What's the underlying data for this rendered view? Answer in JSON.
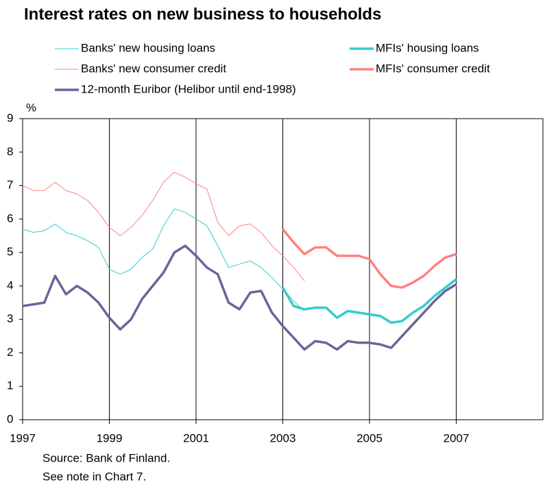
{
  "chart_data": {
    "type": "line",
    "title": "Interest rates on new business to households",
    "y_label": "%",
    "notes": [
      "Source: Bank of Finland.",
      "See note in Chart 7."
    ],
    "x": [
      1997,
      1997.25,
      1997.5,
      1997.75,
      1998,
      1998.25,
      1998.5,
      1998.75,
      1999,
      1999.25,
      1999.5,
      1999.75,
      2000,
      2000.25,
      2000.5,
      2000.75,
      2001,
      2001.25,
      2001.5,
      2001.75,
      2002,
      2002.25,
      2002.5,
      2002.75,
      2003,
      2003.25,
      2003.5,
      2003.75,
      2004,
      2004.25,
      2004.5,
      2004.75,
      2005,
      2005.25,
      2005.5,
      2005.75,
      2006,
      2006.25,
      2006.5,
      2006.75,
      2007
    ],
    "xlim": [
      1997,
      2009
    ],
    "xticks": [
      1997,
      1999,
      2001,
      2003,
      2005,
      2007
    ],
    "ylim": [
      0,
      9
    ],
    "yticks": [
      0,
      1,
      2,
      3,
      4,
      5,
      6,
      7,
      8,
      9
    ],
    "grid": "x",
    "series": [
      {
        "name": "Banks' new housing loans",
        "color": "#33cccc",
        "width": 1,
        "values": [
          5.7,
          5.6,
          5.65,
          5.85,
          5.6,
          5.5,
          5.35,
          5.15,
          4.5,
          4.35,
          4.5,
          4.85,
          5.1,
          5.8,
          6.3,
          6.2,
          6.0,
          5.8,
          5.2,
          4.55,
          4.65,
          4.75,
          4.55,
          4.25,
          3.9,
          3.55,
          3.25,
          null,
          null,
          null,
          null,
          null,
          null,
          null,
          null,
          null,
          null,
          null,
          null,
          null,
          null
        ]
      },
      {
        "name": "MFIs' housing loans",
        "color": "#33cccc",
        "width": 3.5,
        "values": [
          null,
          null,
          null,
          null,
          null,
          null,
          null,
          null,
          null,
          null,
          null,
          null,
          null,
          null,
          null,
          null,
          null,
          null,
          null,
          null,
          null,
          null,
          null,
          null,
          3.95,
          3.4,
          3.3,
          3.35,
          3.35,
          3.05,
          3.25,
          3.2,
          3.15,
          3.1,
          2.9,
          2.95,
          3.2,
          3.4,
          3.7,
          3.95,
          4.2
        ]
      },
      {
        "name": "Banks' new consumer credit",
        "color": "#ff8080",
        "width": 1,
        "values": [
          7.0,
          6.85,
          6.85,
          7.1,
          6.85,
          6.75,
          6.55,
          6.2,
          5.75,
          5.5,
          5.75,
          6.1,
          6.55,
          7.1,
          7.4,
          7.25,
          7.05,
          6.9,
          5.9,
          5.5,
          5.8,
          5.85,
          5.6,
          5.2,
          4.9,
          4.55,
          4.15,
          null,
          null,
          null,
          null,
          null,
          null,
          null,
          null,
          null,
          null,
          null,
          null,
          null,
          null
        ]
      },
      {
        "name": "MFIs'  consumer credit",
        "color": "#ff8080",
        "width": 3.5,
        "values": [
          null,
          null,
          null,
          null,
          null,
          null,
          null,
          null,
          null,
          null,
          null,
          null,
          null,
          null,
          null,
          null,
          null,
          null,
          null,
          null,
          null,
          null,
          null,
          null,
          5.7,
          5.3,
          4.95,
          5.15,
          5.15,
          4.9,
          4.9,
          4.9,
          4.8,
          4.35,
          4.0,
          3.95,
          4.1,
          4.3,
          4.6,
          4.85,
          4.95
        ]
      },
      {
        "name": "12-month Euribor (Helibor until end-1998)",
        "color": "#666699",
        "width": 3.5,
        "values": [
          3.4,
          3.45,
          3.5,
          4.3,
          3.75,
          4.0,
          3.8,
          3.5,
          3.05,
          2.7,
          3.0,
          3.6,
          4.0,
          4.4,
          5.0,
          5.2,
          4.9,
          4.55,
          4.35,
          3.5,
          3.3,
          3.8,
          3.85,
          3.2,
          2.8,
          2.45,
          2.1,
          2.35,
          2.3,
          2.1,
          2.35,
          2.3,
          2.3,
          2.25,
          2.15,
          2.5,
          2.85,
          3.2,
          3.55,
          3.85,
          4.05
        ]
      }
    ]
  }
}
